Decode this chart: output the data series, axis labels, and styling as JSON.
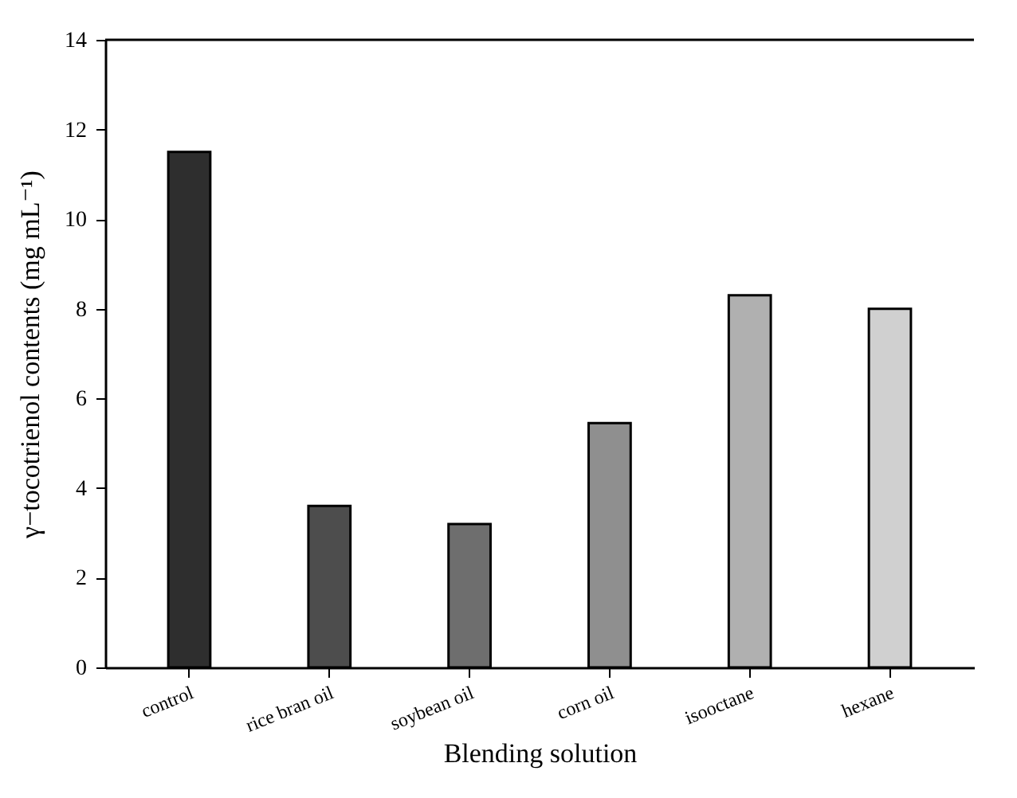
{
  "chart_data": {
    "type": "bar",
    "xlabel": "Blending solution",
    "ylabel": "γ−tocotrienol contents (mg mL⁻¹)",
    "categories": [
      "control",
      "rice bran oil",
      "soybean oil",
      "corn oil",
      "isooctane",
      "hexane"
    ],
    "values": [
      11.5,
      3.6,
      3.2,
      5.45,
      8.3,
      8.0
    ],
    "colors": [
      "#2e2e2e",
      "#4d4d4d",
      "#6e6e6e",
      "#8f8f8f",
      "#b0b0b0",
      "#d0d0d0"
    ],
    "ylim": [
      0,
      14
    ],
    "yticks": [
      0,
      2,
      4,
      6,
      8,
      10,
      12,
      14
    ]
  }
}
